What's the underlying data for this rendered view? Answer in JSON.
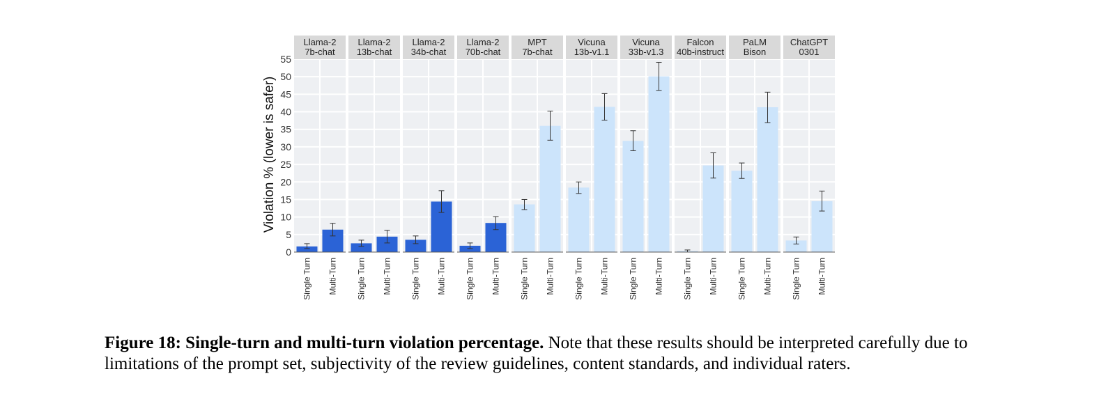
{
  "chart_data": {
    "type": "bar",
    "ylabel": "Violation % (lower is safer)",
    "ylim": [
      0,
      55
    ],
    "yticks": [
      0,
      5,
      10,
      15,
      20,
      25,
      30,
      35,
      40,
      45,
      50,
      55
    ],
    "categories": [
      "Single Turn",
      "Multi-Turn"
    ],
    "colors": {
      "llama2": "#2b63d6",
      "other": "#cce4fb"
    },
    "panels": [
      {
        "label": [
          "Llama-2",
          "7b-chat"
        ],
        "group": "llama2",
        "values": [
          1.6,
          6.4
        ],
        "err_low": [
          1.0,
          4.6
        ],
        "err_high": [
          2.4,
          8.2
        ]
      },
      {
        "label": [
          "Llama-2",
          "13b-chat"
        ],
        "group": "llama2",
        "values": [
          2.5,
          4.4
        ],
        "err_low": [
          1.6,
          2.6
        ],
        "err_high": [
          3.4,
          6.2
        ]
      },
      {
        "label": [
          "Llama-2",
          "34b-chat"
        ],
        "group": "llama2",
        "values": [
          3.5,
          14.4
        ],
        "err_low": [
          2.4,
          11.3
        ],
        "err_high": [
          4.6,
          17.5
        ]
      },
      {
        "label": [
          "Llama-2",
          "70b-chat"
        ],
        "group": "llama2",
        "values": [
          1.8,
          8.3
        ],
        "err_low": [
          1.0,
          6.4
        ],
        "err_high": [
          2.6,
          10.1
        ]
      },
      {
        "label": [
          "MPT",
          "7b-chat"
        ],
        "group": "other",
        "values": [
          13.6,
          36.0
        ],
        "err_low": [
          12.1,
          31.9
        ],
        "err_high": [
          15.0,
          40.2
        ]
      },
      {
        "label": [
          "Vicuna",
          "13b-v1.1"
        ],
        "group": "other",
        "values": [
          18.4,
          41.4
        ],
        "err_low": [
          16.7,
          37.6
        ],
        "err_high": [
          20.0,
          45.2
        ]
      },
      {
        "label": [
          "Vicuna",
          "33b-v1.3"
        ],
        "group": "other",
        "values": [
          31.7,
          50.1
        ],
        "err_low": [
          28.9,
          46.1
        ],
        "err_high": [
          34.6,
          54.1
        ]
      },
      {
        "label": [
          "Falcon",
          "40b-instruct"
        ],
        "group": "other",
        "values": [
          0.3,
          24.7
        ],
        "err_low": [
          0.0,
          21.1
        ],
        "err_high": [
          0.6,
          28.3
        ]
      },
      {
        "label": [
          "PaLM",
          "Bison"
        ],
        "group": "other",
        "values": [
          23.2,
          41.3
        ],
        "err_low": [
          21.0,
          36.9
        ],
        "err_high": [
          25.4,
          45.6
        ]
      },
      {
        "label": [
          "ChatGPT",
          "0301"
        ],
        "group": "other",
        "values": [
          3.3,
          14.5
        ],
        "err_low": [
          2.3,
          11.7
        ],
        "err_high": [
          4.3,
          17.4
        ]
      }
    ]
  },
  "caption": {
    "bold": "Figure 18: Single-turn and multi-turn violation percentage.",
    "text": " Note that these results should be interpreted carefully due to limitations of the prompt set, subjectivity of the review guidelines, content standards, and individual raters."
  }
}
